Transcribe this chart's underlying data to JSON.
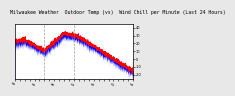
{
  "title": "Milwaukee Weather  Outdoor Temp (vs)  Wind Chill per Minute (Last 24 Hours)",
  "title_fontsize": 3.5,
  "title_color": "#000000",
  "bg_color": "#e8e8e8",
  "plot_bg_color": "#ffffff",
  "line_color_red": "#ff0000",
  "fill_color_blue": "#0000ff",
  "grid_color": "#888888",
  "ytick_color": "#000000",
  "xtick_color": "#000000",
  "ylim": [
    -25,
    45
  ],
  "yticks": [
    40,
    30,
    20,
    10,
    0,
    -10,
    -20
  ],
  "num_points": 1440,
  "seed": 7
}
